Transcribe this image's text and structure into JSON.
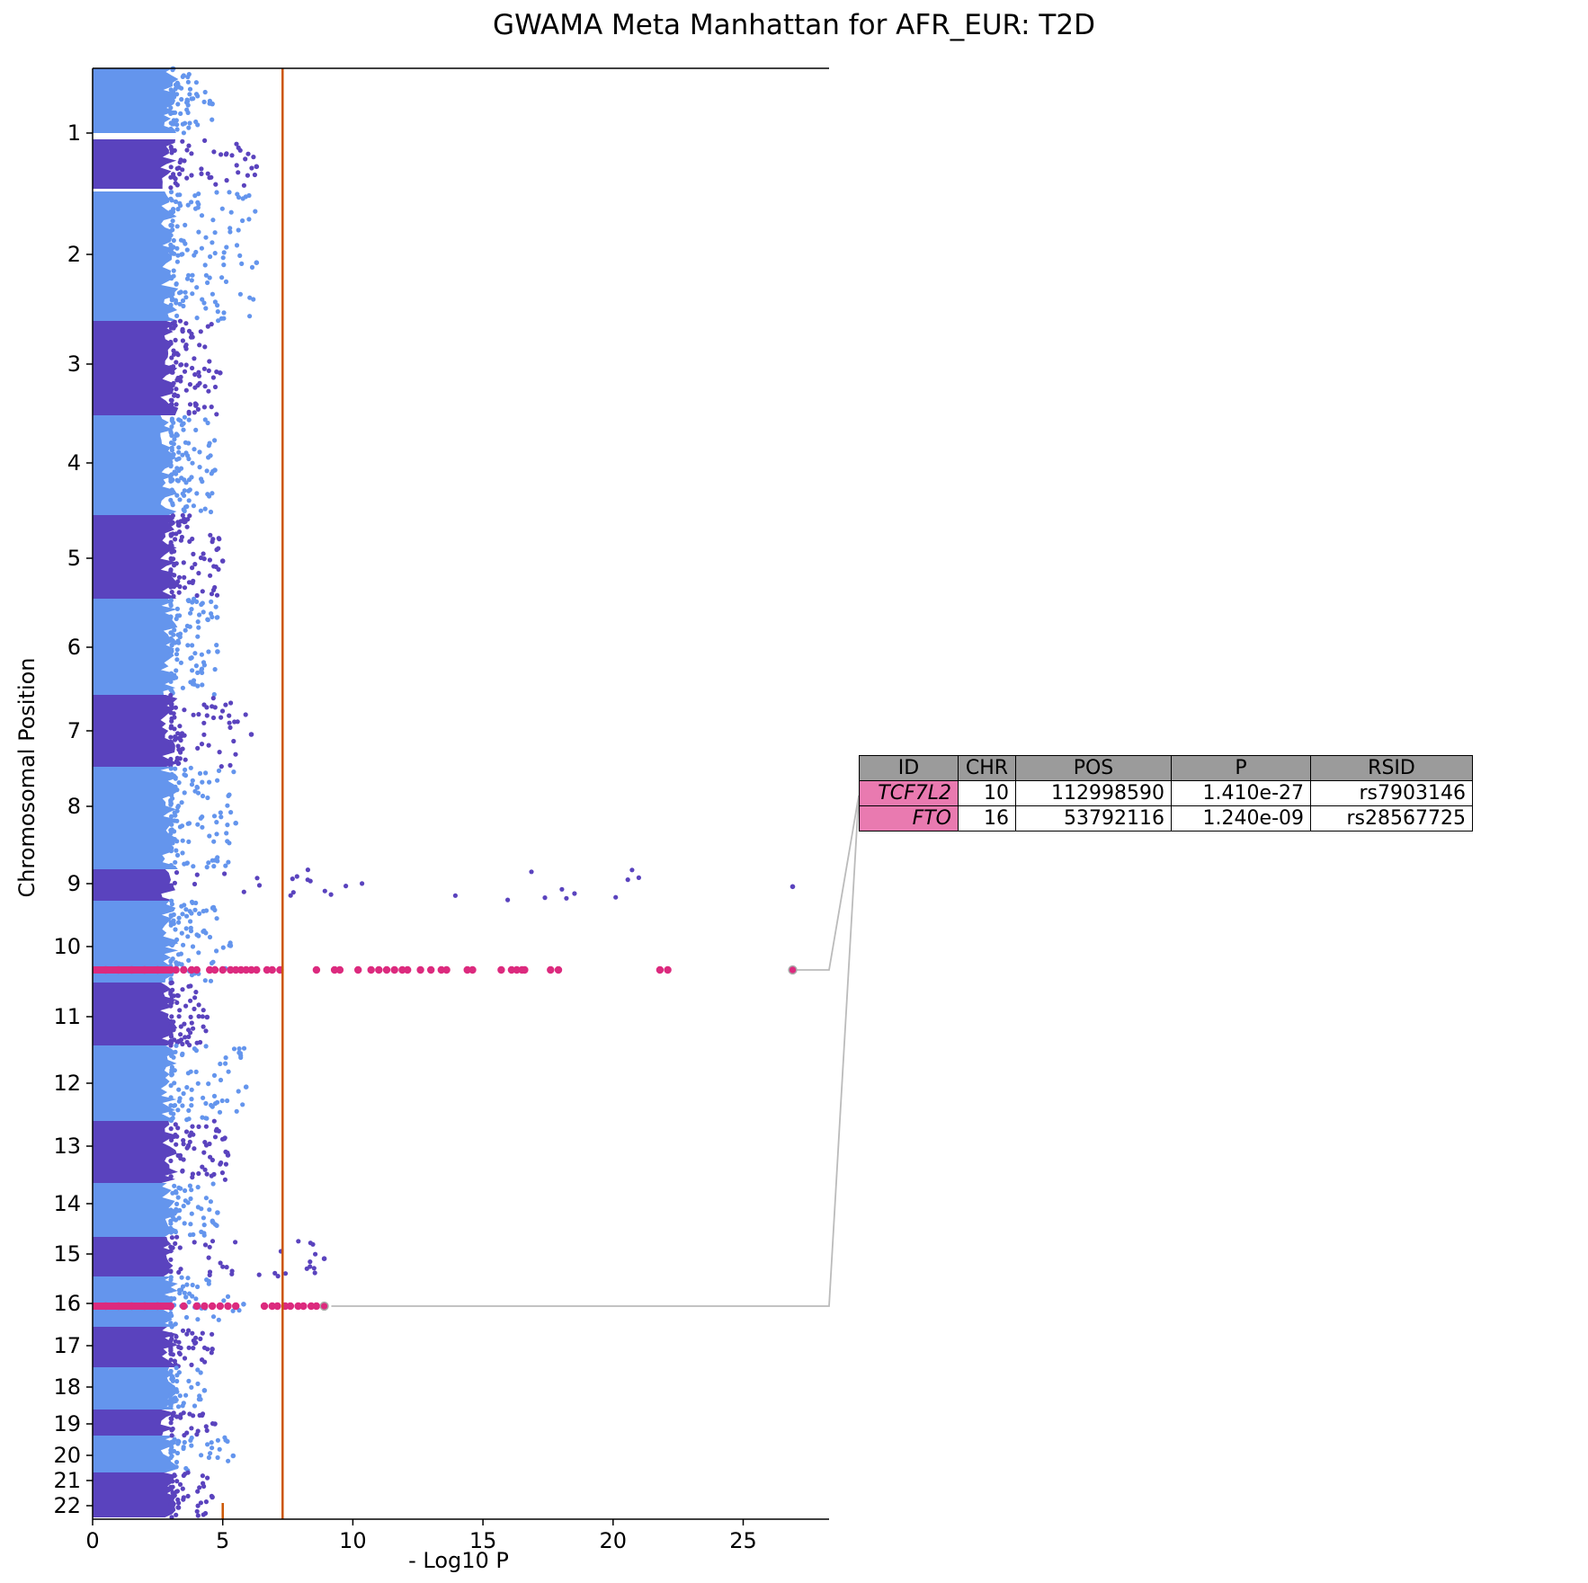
{
  "title": "GWAMA Meta Manhattan for AFR_EUR: T2D",
  "chart_data": {
    "type": "scatter",
    "orientation": "horizontal",
    "title": "GWAMA Meta Manhattan for AFR_EUR: T2D",
    "xlabel": "- Log10 P",
    "ylabel": "Chromosomal Position",
    "xlim": [
      0,
      28.3
    ],
    "xticks": [
      0,
      5,
      10,
      15,
      20,
      25
    ],
    "yticks": [
      "1",
      "2",
      "3",
      "4",
      "5",
      "6",
      "7",
      "8",
      "9",
      "10",
      "11",
      "12",
      "13",
      "14",
      "15",
      "16",
      "17",
      "18",
      "19",
      "20",
      "21",
      "22"
    ],
    "genome_wide_threshold": 7.3,
    "suggestive_threshold_marker": 5.0,
    "colors": {
      "odd_chromosomes": "#6495ed",
      "even_chromosomes": "#5a43be",
      "highlight": "#dc2a7e",
      "threshold": "#cc5500",
      "connector": "#bbbbbb",
      "table_header": "#9b9b9b",
      "table_gene": "#e97ab0"
    },
    "chromosomes": [
      {
        "chr": "1",
        "max_neglog10p": 4.6
      },
      {
        "chr": "2",
        "max_neglog10p": 6.3
      },
      {
        "chr": "3",
        "max_neglog10p": 6.3
      },
      {
        "chr": "4",
        "max_neglog10p": 4.9
      },
      {
        "chr": "5",
        "max_neglog10p": 4.7
      },
      {
        "chr": "6",
        "max_neglog10p": 5.0
      },
      {
        "chr": "7",
        "max_neglog10p": 4.8
      },
      {
        "chr": "8",
        "max_neglog10p": 6.1
      },
      {
        "chr": "9",
        "max_neglog10p": 5.5
      },
      {
        "chr": "10",
        "max_neglog10p": 26.9
      },
      {
        "chr": "11",
        "max_neglog10p": 5.3
      },
      {
        "chr": "12",
        "max_neglog10p": 4.4
      },
      {
        "chr": "13",
        "max_neglog10p": 5.9
      },
      {
        "chr": "14",
        "max_neglog10p": 5.2
      },
      {
        "chr": "15",
        "max_neglog10p": 4.8
      },
      {
        "chr": "16",
        "max_neglog10p": 8.9
      },
      {
        "chr": "17",
        "max_neglog10p": 5.8
      },
      {
        "chr": "18",
        "max_neglog10p": 4.6
      },
      {
        "chr": "19",
        "max_neglog10p": 4.3
      },
      {
        "chr": "20",
        "max_neglog10p": 4.7
      },
      {
        "chr": "21",
        "max_neglog10p": 5.4
      },
      {
        "chr": "22",
        "max_neglog10p": 4.6
      }
    ],
    "highlighted_loci": [
      {
        "chr": "10",
        "gene": "TCF7L2",
        "values": [
          0.5,
          1,
          1.5,
          2,
          2.5,
          3,
          3.2,
          3.5,
          3.8,
          4.0,
          4.5,
          4.7,
          5.0,
          5.3,
          5.5,
          5.7,
          5.9,
          6.1,
          6.3,
          6.7,
          6.9,
          7.2,
          8.6,
          9.3,
          9.5,
          10.2,
          10.7,
          11.0,
          11.3,
          11.6,
          11.9,
          12.1,
          12.6,
          13.0,
          13.4,
          13.6,
          14.4,
          14.6,
          15.7,
          16.1,
          16.3,
          16.5,
          16.6,
          17.6,
          17.9,
          21.8,
          22.1,
          26.9
        ]
      },
      {
        "chr": "16",
        "gene": "FTO",
        "values": [
          0.5,
          1,
          1.5,
          2,
          2.5,
          3,
          3.5,
          4.0,
          4.3,
          4.6,
          4.9,
          5.2,
          5.5,
          6.6,
          6.9,
          7.1,
          7.4,
          7.6,
          7.9,
          8.1,
          8.4,
          8.6,
          8.9
        ]
      }
    ],
    "table": {
      "columns": [
        "ID",
        "CHR",
        "POS",
        "P",
        "RSID"
      ],
      "rows": [
        {
          "ID": "TCF7L2",
          "CHR": "10",
          "POS": "112998590",
          "P": "1.410e-27",
          "RSID": "rs7903146"
        },
        {
          "ID": "FTO",
          "CHR": "16",
          "POS": "53792116",
          "P": "1.240e-09",
          "RSID": "rs28567725"
        }
      ]
    }
  }
}
